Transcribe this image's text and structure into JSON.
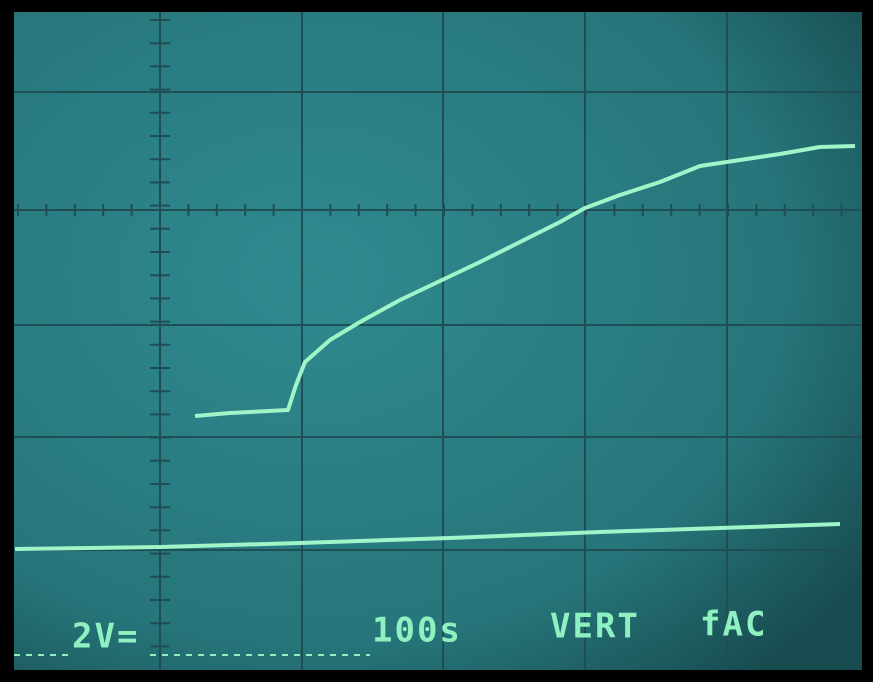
{
  "readout": {
    "channel": "2V=",
    "timebase": "100s",
    "mode": "VERT",
    "coupling": "fAC"
  }
}
